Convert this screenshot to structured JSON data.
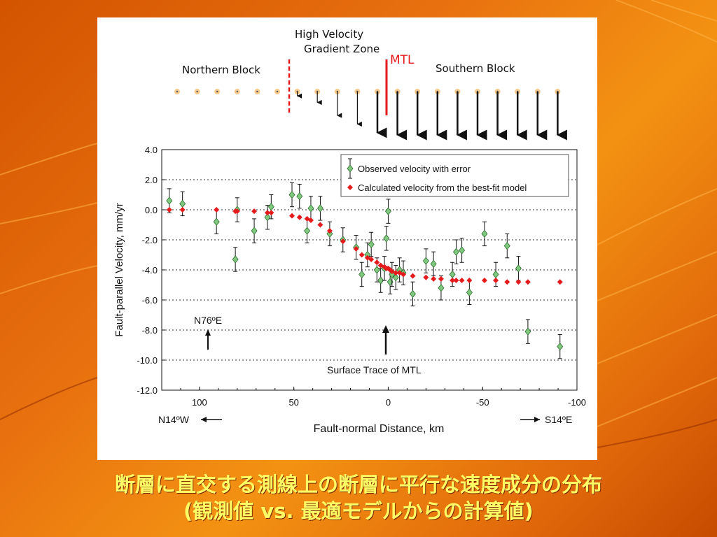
{
  "caption": {
    "line1": "断層に直交する測線上の断層に平行な速度成分の分布",
    "line2": "(観測値 vs. 最適モデルからの計算値)"
  },
  "schematic": {
    "gradient_zone_label_1": "High Velocity",
    "gradient_zone_label_2": "Gradient Zone",
    "mtl_label": "MTL",
    "northern_block_label": "Northern Block",
    "southern_block_label": "Southern Block",
    "arrow_lengths": [
      0,
      0,
      0,
      0,
      0,
      0,
      0.1,
      0.25,
      0.55,
      0.75,
      0.95,
      1,
      1,
      1,
      1,
      1,
      1,
      1,
      1,
      1
    ]
  },
  "colors": {
    "observed": "#7fc97f",
    "calculated": "#e41a1c",
    "mtl": "#e41a1c",
    "caption": "#ffff66"
  },
  "annotations": {
    "n76e": "N76ºE",
    "surface_trace": "Surface Trace of MTL",
    "west": "N14ºW",
    "east": "S14ºE"
  },
  "chart_data": {
    "type": "scatter",
    "xlabel": "Fault-normal Distance, km",
    "ylabel": "Fault-parallel Velocity, mm/yr",
    "xlim": [
      120,
      -100
    ],
    "ylim": [
      -12,
      4
    ],
    "x_reversed": true,
    "x_ticks": [
      "100",
      "50",
      "0",
      "-50",
      "-100"
    ],
    "x_tick_values": [
      100,
      50,
      0,
      -50,
      -100
    ],
    "y_ticks": [
      "4.0",
      "2.0",
      "0.0",
      "-2.0",
      "-4.0",
      "-6.0",
      "-8.0",
      "-10.0",
      "-12.0"
    ],
    "y_tick_values": [
      4,
      2,
      0,
      -2,
      -4,
      -6,
      -8,
      -10,
      -12
    ],
    "grid": "horizontal dotted",
    "legend_position": "top-right",
    "series": [
      {
        "name": "Observed velocity with error",
        "marker": "diamond",
        "points": [
          {
            "x": 116,
            "y": 0.6,
            "e": 0.8
          },
          {
            "x": 109,
            "y": 0.4,
            "e": 0.8
          },
          {
            "x": 91,
            "y": -0.8,
            "e": 0.8
          },
          {
            "x": 81,
            "y": -3.3,
            "e": 0.8
          },
          {
            "x": 80,
            "y": 0.0,
            "e": 0.8
          },
          {
            "x": 71,
            "y": -1.4,
            "e": 0.8
          },
          {
            "x": 64,
            "y": -0.5,
            "e": 0.8
          },
          {
            "x": 62,
            "y": 0.2,
            "e": 0.8
          },
          {
            "x": 51,
            "y": 1.0,
            "e": 0.8
          },
          {
            "x": 47,
            "y": 0.9,
            "e": 0.8
          },
          {
            "x": 43,
            "y": -1.4,
            "e": 0.8
          },
          {
            "x": 41,
            "y": 0.1,
            "e": 0.8
          },
          {
            "x": 36,
            "y": 0.1,
            "e": 0.8
          },
          {
            "x": 31,
            "y": -1.6,
            "e": 0.8
          },
          {
            "x": 24,
            "y": -2.0,
            "e": 0.8
          },
          {
            "x": 17,
            "y": -2.5,
            "e": 0.8
          },
          {
            "x": 14,
            "y": -4.3,
            "e": 0.8
          },
          {
            "x": 11,
            "y": -3.0,
            "e": 0.8
          },
          {
            "x": 9,
            "y": -2.3,
            "e": 0.8
          },
          {
            "x": 6,
            "y": -4.0,
            "e": 0.8
          },
          {
            "x": 4,
            "y": -4.7,
            "e": 0.8
          },
          {
            "x": 2,
            "y": -3.9,
            "e": 0.8
          },
          {
            "x": 1,
            "y": -1.9,
            "e": 0.8
          },
          {
            "x": 0,
            "y": -0.1,
            "e": 0.8
          },
          {
            "x": -1,
            "y": -4.8,
            "e": 0.8
          },
          {
            "x": -2,
            "y": -4.3,
            "e": 0.8
          },
          {
            "x": -4,
            "y": -4.5,
            "e": 0.8
          },
          {
            "x": -6,
            "y": -4.0,
            "e": 0.8
          },
          {
            "x": -8,
            "y": -4.2,
            "e": 0.8
          },
          {
            "x": -13,
            "y": -5.6,
            "e": 0.8
          },
          {
            "x": -20,
            "y": -3.4,
            "e": 0.8
          },
          {
            "x": -24,
            "y": -3.6,
            "e": 0.8
          },
          {
            "x": -28,
            "y": -5.2,
            "e": 0.8
          },
          {
            "x": -34,
            "y": -4.3,
            "e": 0.8
          },
          {
            "x": -36,
            "y": -2.8,
            "e": 0.8
          },
          {
            "x": -39,
            "y": -2.7,
            "e": 0.8
          },
          {
            "x": -43,
            "y": -5.5,
            "e": 0.8
          },
          {
            "x": -51,
            "y": -1.6,
            "e": 0.8
          },
          {
            "x": -57,
            "y": -4.3,
            "e": 0.8
          },
          {
            "x": -63,
            "y": -2.4,
            "e": 0.8
          },
          {
            "x": -69,
            "y": -3.9,
            "e": 0.8
          },
          {
            "x": -74,
            "y": -8.1,
            "e": 0.8
          },
          {
            "x": -91,
            "y": -9.1,
            "e": 0.8
          }
        ]
      },
      {
        "name": "Calculated velocity from the best-fit model",
        "marker": "diamond",
        "points": [
          {
            "x": 116,
            "y": 0.0
          },
          {
            "x": 109,
            "y": 0.0
          },
          {
            "x": 91,
            "y": 0.0
          },
          {
            "x": 81,
            "y": -0.1
          },
          {
            "x": 80,
            "y": -0.1
          },
          {
            "x": 71,
            "y": -0.1
          },
          {
            "x": 64,
            "y": -0.2
          },
          {
            "x": 62,
            "y": -0.2
          },
          {
            "x": 51,
            "y": -0.4
          },
          {
            "x": 47,
            "y": -0.5
          },
          {
            "x": 43,
            "y": -0.6
          },
          {
            "x": 41,
            "y": -0.7
          },
          {
            "x": 36,
            "y": -1.0
          },
          {
            "x": 31,
            "y": -1.4
          },
          {
            "x": 24,
            "y": -2.1
          },
          {
            "x": 17,
            "y": -2.6
          },
          {
            "x": 14,
            "y": -3.0
          },
          {
            "x": 11,
            "y": -3.2
          },
          {
            "x": 9,
            "y": -3.3
          },
          {
            "x": 6,
            "y": -3.5
          },
          {
            "x": 4,
            "y": -3.7
          },
          {
            "x": 2,
            "y": -3.8
          },
          {
            "x": 1,
            "y": -3.9
          },
          {
            "x": 0,
            "y": -3.9
          },
          {
            "x": -1,
            "y": -4.0
          },
          {
            "x": -2,
            "y": -4.1
          },
          {
            "x": -4,
            "y": -4.2
          },
          {
            "x": -6,
            "y": -4.2
          },
          {
            "x": -8,
            "y": -4.3
          },
          {
            "x": -13,
            "y": -4.4
          },
          {
            "x": -20,
            "y": -4.5
          },
          {
            "x": -24,
            "y": -4.6
          },
          {
            "x": -28,
            "y": -4.6
          },
          {
            "x": -34,
            "y": -4.7
          },
          {
            "x": -36,
            "y": -4.7
          },
          {
            "x": -39,
            "y": -4.7
          },
          {
            "x": -43,
            "y": -4.7
          },
          {
            "x": -51,
            "y": -4.7
          },
          {
            "x": -57,
            "y": -4.7
          },
          {
            "x": -63,
            "y": -4.8
          },
          {
            "x": -69,
            "y": -4.8
          },
          {
            "x": -74,
            "y": -4.8
          },
          {
            "x": -91,
            "y": -4.8
          }
        ]
      }
    ]
  }
}
